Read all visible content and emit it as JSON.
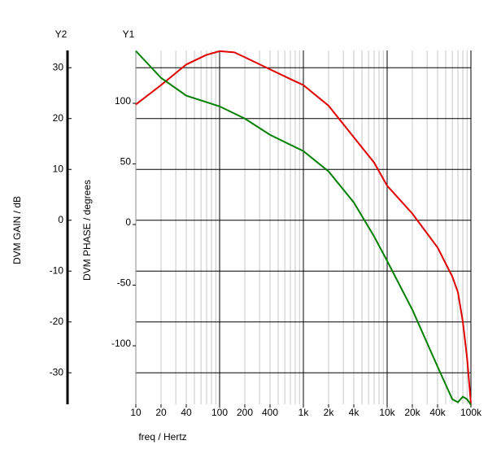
{
  "chart_data": {
    "type": "line",
    "xlabel": "freq / Hertz",
    "ylabel": "DVM PHASE / degrees",
    "y2label": "DVM GAIN / dB",
    "y1name": "Y1",
    "y2name": "Y2",
    "xscale": "log",
    "grid": true,
    "xlim": [
      10,
      100000
    ],
    "xticks": [
      10,
      20,
      40,
      100,
      200,
      400,
      {
        "value": 1000,
        "label": "1k"
      },
      {
        "value": 2000,
        "label": "2k"
      },
      {
        "value": 4000,
        "label": "4k"
      },
      {
        "value": 10000,
        "label": "10k"
      },
      {
        "value": 20000,
        "label": "20k"
      },
      {
        "value": 40000,
        "label": "40k"
      },
      {
        "value": 100000,
        "label": "100k"
      }
    ],
    "ylim": [
      -148.3,
      143.6
    ],
    "yticks": [
      100,
      50,
      0,
      -50,
      -100
    ],
    "y2lim": [
      -36.2,
      33.4
    ],
    "y2ticks": [
      30,
      20,
      10,
      0,
      -10,
      -20,
      -30
    ],
    "series": [
      {
        "color": "#e00000",
        "axis": "y",
        "x": [
          10,
          20,
          40,
          70,
          100,
          150,
          200,
          400,
          700,
          1000,
          2000,
          4000,
          7000,
          10000,
          20000,
          40000,
          60000,
          70000,
          80000,
          90000,
          100000
        ],
        "values": [
          99,
          115,
          132,
          140,
          143,
          142,
          138,
          128,
          120,
          115,
          98,
          72,
          51,
          32,
          9,
          -19,
          -43,
          -56,
          -80,
          -110,
          -148
        ]
      },
      {
        "color": "#008000",
        "axis": "y2",
        "x": [
          10,
          20,
          40,
          100,
          200,
          400,
          1000,
          2000,
          4000,
          7000,
          10000,
          20000,
          40000,
          60000,
          70000,
          80000,
          90000,
          100000
        ],
        "values": [
          33.3,
          28,
          24.5,
          22.4,
          20,
          16.8,
          13.6,
          9.6,
          3.5,
          -3.2,
          -8,
          -17.6,
          -28.8,
          -35.2,
          -35.8,
          -34.7,
          -35.2,
          -36.3
        ]
      }
    ]
  }
}
